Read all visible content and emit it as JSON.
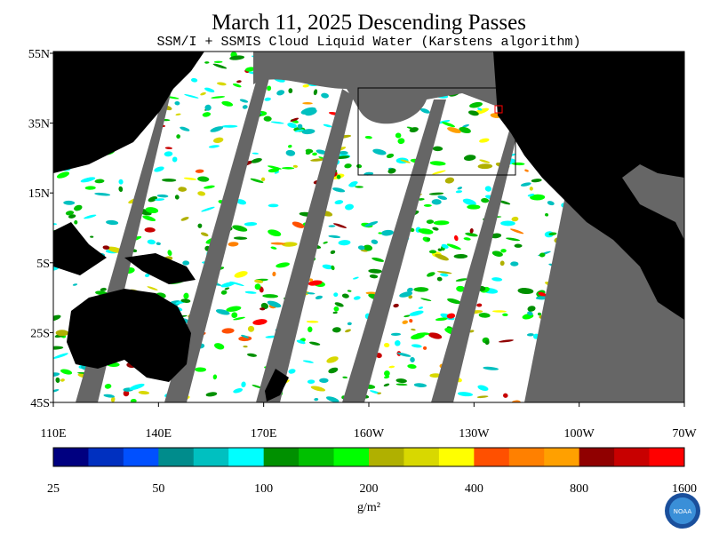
{
  "header": {
    "title": "March 11, 2025  Descending Passes",
    "subtitle": "SSM/I + SSMIS Cloud Liquid Water (Karstens algorithm)"
  },
  "map": {
    "lat_labels": [
      "55N",
      "35N",
      "15N",
      "5S",
      "25S",
      "45S"
    ],
    "lon_labels": [
      "110E",
      "140E",
      "170E",
      "160W",
      "130W",
      "100W",
      "70W"
    ]
  },
  "colorbar": {
    "colors": [
      "#000080",
      "#0030c0",
      "#0050ff",
      "#008c8c",
      "#00c0c0",
      "#00ffff",
      "#009000",
      "#00c000",
      "#00ff00",
      "#b0b000",
      "#d8d800",
      "#ffff00",
      "#ff5000",
      "#ff8000",
      "#ffa000",
      "#900000",
      "#c80000",
      "#ff0000"
    ],
    "labels": [
      25,
      50,
      100,
      200,
      400,
      800,
      1600
    ],
    "unit": "g/m²"
  },
  "logo": {
    "text": "NOAA"
  }
}
